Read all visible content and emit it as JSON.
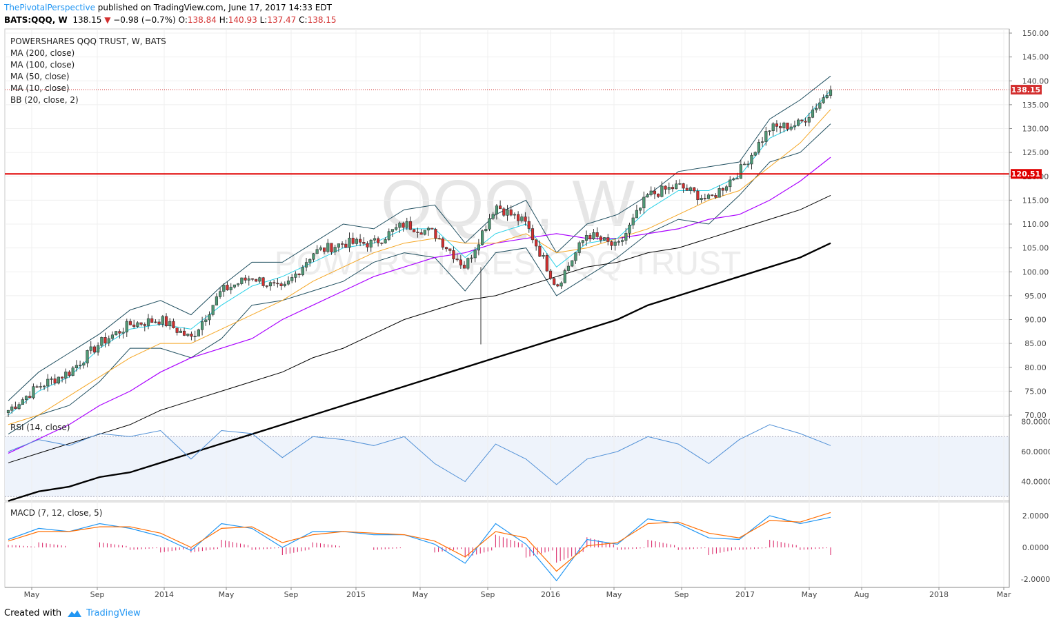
{
  "header": {
    "author": "ThePivotalPerspective",
    "published": " published on TradingView.com, June 17, 2017 14:33 EDT",
    "symbol": "BATS:QQQ, W",
    "last": "138.15",
    "change_icon": "down-triangle-icon",
    "change": "−0.98 (−0.7%)",
    "o_label": "O:",
    "o": "138.84",
    "h_label": "H:",
    "h": "140.93",
    "l_label": "L:",
    "l": "137.47",
    "c_label": "C:",
    "c": "138.15"
  },
  "legend": {
    "title": "POWERSHARES QQQ TRUST, W, BATS",
    "ma200": "MA (200, close)",
    "ma100": "MA (100, close)",
    "ma50": "MA (50, close)",
    "ma10": "MA (10, close)",
    "bb": "BB (20, close, 2)",
    "rsi": "RSI (14, close)",
    "macd": "MACD (7, 12, close, 5)"
  },
  "watermark": {
    "big": "QQQ, W",
    "sub": "POWERSHARES QQQ TRUST"
  },
  "footer": {
    "created": "Created with",
    "brand": "TradingView",
    "icon": "tradingview-logo-icon"
  },
  "colors": {
    "up": "#4f9a76",
    "down": "#d32f2f",
    "ma10": "#26d0e6",
    "ma50": "#f5a623",
    "ma100": "#aa00ff",
    "ma200_thin": "#000000",
    "ma200_thick": "#000000",
    "bb": "#1f4e5f",
    "hline": "#e00000",
    "rsi": "#4f8fd6",
    "macd": "#2196f3",
    "signal": "#ff6d00",
    "hist": "#d81b60"
  },
  "chart_data": {
    "type": "candlestick",
    "price_axis": {
      "ticks": [
        150,
        145,
        140,
        135,
        130,
        125,
        120,
        115,
        110,
        105,
        100,
        95,
        90,
        85,
        80,
        75,
        70
      ],
      "ylim": [
        70,
        150.5
      ]
    },
    "time_axis": {
      "labels": [
        "May",
        "Sep",
        "2014",
        "May",
        "Sep",
        "2015",
        "May",
        "Sep",
        "2016",
        "May",
        "Sep",
        "2017",
        "May",
        "Aug",
        "2018",
        "Mar"
      ]
    },
    "last_price_label": "138.15",
    "horizontal_line": {
      "value": 120.51,
      "label": "120.51"
    },
    "series": [
      {
        "name": "QQQ weekly close",
        "x": [
          "2013-04",
          "2013-07",
          "2013-09",
          "2013-11",
          "2014-01",
          "2014-03",
          "2014-05",
          "2014-07",
          "2014-09",
          "2014-10",
          "2014-12",
          "2015-02",
          "2015-04",
          "2015-06",
          "2015-08",
          "2015-09",
          "2015-11",
          "2015-12",
          "2016-02",
          "2016-04",
          "2016-06",
          "2016-08",
          "2016-10",
          "2016-11",
          "2017-01",
          "2017-03",
          "2017-04",
          "2017-06"
        ],
        "values": [
          71,
          76,
          79,
          85,
          89,
          90,
          86,
          96,
          99,
          96,
          104,
          106,
          106,
          110,
          108,
          101,
          114,
          110,
          97,
          108,
          105,
          116,
          118,
          115,
          121,
          130,
          131,
          138.15
        ]
      },
      {
        "name": "MA (10, close)",
        "values": [
          70,
          75,
          78,
          84,
          88,
          89,
          88,
          93,
          97,
          99,
          102,
          105,
          106,
          109,
          109,
          103,
          108,
          110,
          101,
          106,
          107,
          113,
          117,
          117,
          120,
          128,
          131,
          138
        ]
      },
      {
        "name": "MA (50, close)",
        "values": [
          68,
          70,
          74,
          78,
          82,
          85,
          85,
          88,
          91,
          94,
          98,
          101,
          104,
          106,
          107,
          106,
          106,
          108,
          104,
          105,
          107,
          109,
          112,
          115,
          117,
          122,
          127,
          134
        ]
      },
      {
        "name": "MA (100, close)",
        "values": [
          62,
          65,
          68,
          72,
          75,
          79,
          82,
          84,
          86,
          90,
          93,
          96,
          99,
          101,
          103,
          104,
          106,
          107,
          108,
          107,
          107,
          108,
          109,
          111,
          112,
          115,
          119,
          124
        ]
      },
      {
        "name": "MA (200, close)",
        "values": [
          60,
          62,
          64,
          66,
          68,
          71,
          73,
          75,
          77,
          79,
          82,
          84,
          87,
          90,
          92,
          94,
          95,
          97,
          99,
          101,
          102,
          104,
          105,
          107,
          109,
          111,
          113,
          116
        ]
      },
      {
        "name": "MA (200, close) long",
        "values": [
          52,
          54,
          55,
          57,
          58,
          60,
          62,
          64,
          66,
          68,
          70,
          72,
          74,
          76,
          78,
          80,
          82,
          84,
          86,
          88,
          90,
          93,
          95,
          97,
          99,
          101,
          103,
          106
        ]
      }
    ],
    "rsi": {
      "ticks": [
        80,
        60,
        40
      ],
      "bands": [
        70,
        30
      ],
      "values": [
        60,
        68,
        64,
        72,
        70,
        74,
        55,
        74,
        72,
        56,
        70,
        68,
        64,
        70,
        52,
        40,
        65,
        55,
        38,
        55,
        60,
        70,
        65,
        52,
        68,
        78,
        72,
        64
      ]
    },
    "macd": {
      "ticks": [
        2,
        0,
        -2
      ],
      "macd": [
        0.5,
        1.2,
        1.0,
        1.5,
        1.2,
        0.7,
        -0.2,
        1.5,
        1.2,
        0.0,
        1.0,
        1.0,
        0.8,
        0.8,
        0.2,
        -1.0,
        1.5,
        0.2,
        -2.1,
        0.5,
        0.2,
        1.8,
        1.5,
        0.6,
        0.5,
        2.0,
        1.5,
        1.9
      ],
      "signal": [
        0.4,
        1.0,
        1.0,
        1.3,
        1.3,
        0.9,
        0.0,
        1.2,
        1.3,
        0.3,
        0.8,
        1.0,
        0.9,
        0.8,
        0.4,
        -0.6,
        1.0,
        0.6,
        -1.5,
        0.1,
        0.3,
        1.5,
        1.6,
        0.9,
        0.6,
        1.7,
        1.6,
        2.2
      ]
    }
  }
}
